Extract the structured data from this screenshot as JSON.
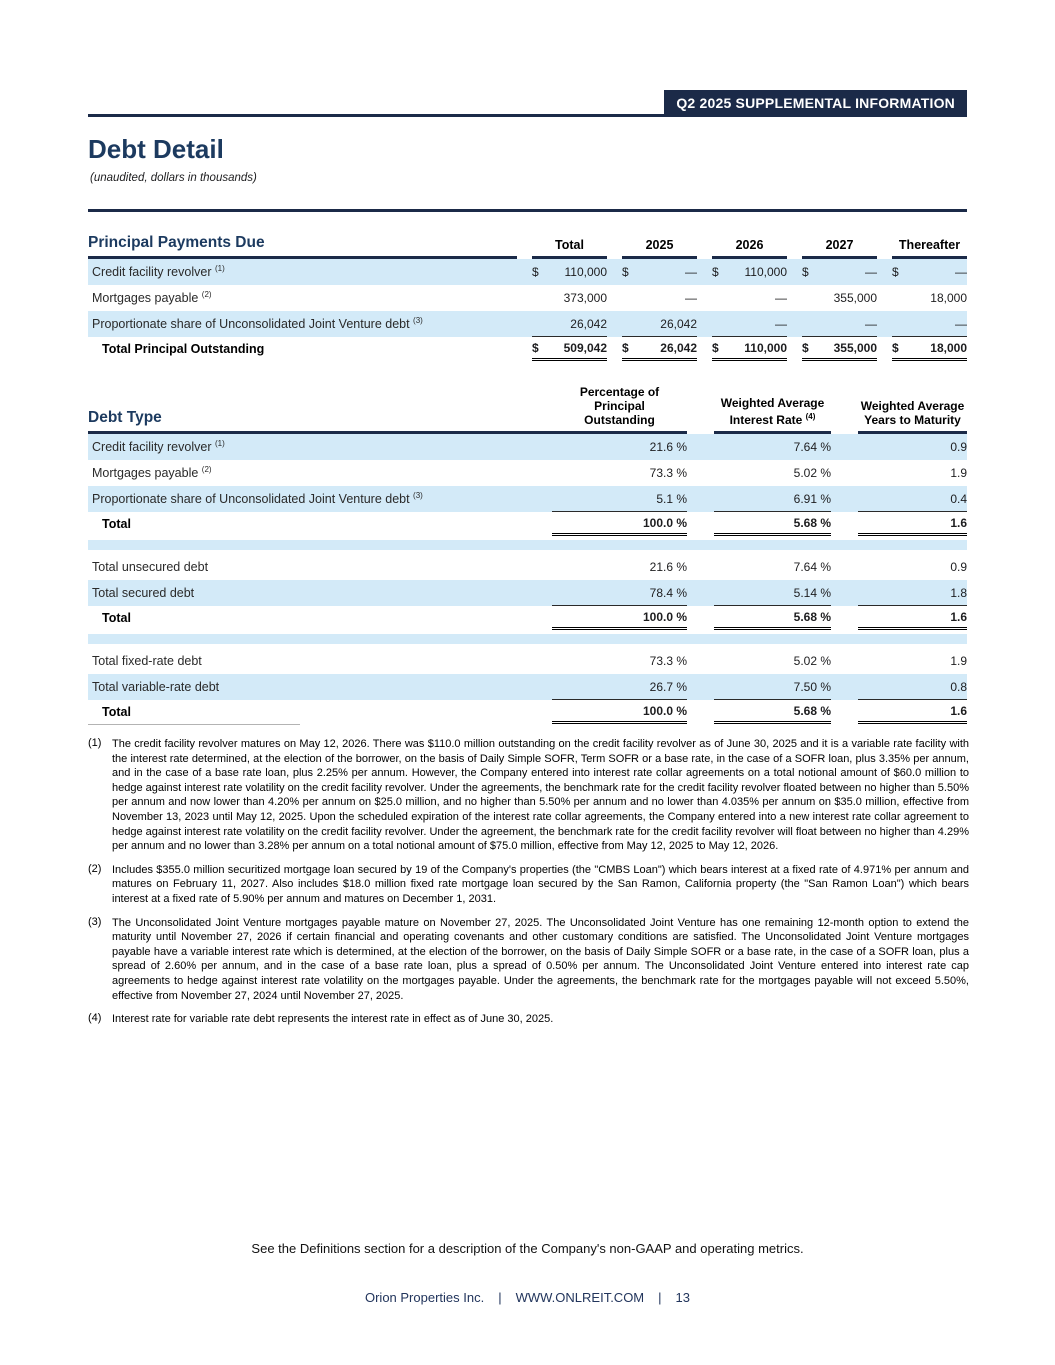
{
  "header": {
    "badge": "Q2 2025 SUPPLEMENTAL INFORMATION",
    "title": "Debt Detail",
    "subtitle": "(unaudited, dollars in thousands)"
  },
  "colors": {
    "navy": "#1b2a48",
    "title_navy": "#1c3a5f",
    "row_blue": "#d3eaf8"
  },
  "principal_table": {
    "header_label": "Principal Payments Due",
    "columns": [
      "Total",
      "2025",
      "2026",
      "2027",
      "Thereafter"
    ],
    "currency_symbol": "$",
    "rows": [
      {
        "label": "Credit facility revolver",
        "sup": "(1)",
        "dollar": true,
        "shaded": true,
        "values": [
          "110,000",
          "—",
          "110,000",
          "—",
          "—"
        ]
      },
      {
        "label": "Mortgages payable",
        "sup": "(2)",
        "dollar": false,
        "shaded": false,
        "values": [
          "373,000",
          "—",
          "—",
          "355,000",
          "18,000"
        ]
      },
      {
        "label": "Proportionate share of Unconsolidated Joint Venture debt",
        "sup": "(3)",
        "dollar": false,
        "shaded": true,
        "values": [
          "26,042",
          "26,042",
          "—",
          "—",
          "—"
        ]
      }
    ],
    "total": {
      "label": "Total Principal Outstanding",
      "dollar": true,
      "values": [
        "509,042",
        "26,042",
        "110,000",
        "355,000",
        "18,000"
      ]
    }
  },
  "debt_table": {
    "header_label": "Debt Type",
    "columns": [
      {
        "lines": [
          "Percentage of",
          "Principal",
          "Outstanding"
        ],
        "sup": ""
      },
      {
        "lines": [
          "Weighted Average",
          "Interest Rate"
        ],
        "sup": "(4)"
      },
      {
        "lines": [
          "Weighted Average",
          "Years to Maturity"
        ],
        "sup": ""
      }
    ],
    "percent_sign": "%",
    "sections": [
      {
        "rows": [
          {
            "label": "Credit facility revolver",
            "sup": "(1)",
            "shaded": true,
            "pct": "21.6",
            "rate": "7.64",
            "years": "0.9"
          },
          {
            "label": "Mortgages payable",
            "sup": "(2)",
            "shaded": false,
            "pct": "73.3",
            "rate": "5.02",
            "years": "1.9"
          },
          {
            "label": "Proportionate share of Unconsolidated Joint Venture debt",
            "sup": "(3)",
            "shaded": true,
            "pct": "5.1",
            "rate": "6.91",
            "years": "0.4"
          }
        ],
        "total": {
          "label": "Total",
          "pct": "100.0",
          "rate": "5.68",
          "years": "1.6"
        }
      },
      {
        "rows": [
          {
            "label": "Total unsecured debt",
            "sup": "",
            "shaded": false,
            "pct": "21.6",
            "rate": "7.64",
            "years": "0.9"
          },
          {
            "label": "Total secured debt",
            "sup": "",
            "shaded": true,
            "pct": "78.4",
            "rate": "5.14",
            "years": "1.8"
          }
        ],
        "total": {
          "label": "Total",
          "pct": "100.0",
          "rate": "5.68",
          "years": "1.6"
        }
      },
      {
        "rows": [
          {
            "label": "Total fixed-rate debt",
            "sup": "",
            "shaded": false,
            "pct": "73.3",
            "rate": "5.02",
            "years": "1.9"
          },
          {
            "label": "Total variable-rate debt",
            "sup": "",
            "shaded": true,
            "pct": "26.7",
            "rate": "7.50",
            "years": "0.8"
          }
        ],
        "total": {
          "label": "Total",
          "pct": "100.0",
          "rate": "5.68",
          "years": "1.6"
        }
      }
    ]
  },
  "footnotes": [
    {
      "num": "(1)",
      "text": "The credit facility revolver matures on May 12, 2026. There was $110.0 million outstanding on the credit facility revolver as of June 30, 2025 and it is a variable rate facility with the interest rate determined, at the election of the borrower, on the basis of Daily Simple SOFR, Term SOFR or a base rate, in the case of a SOFR loan, plus 3.35% per annum, and in the case of a base rate loan, plus 2.25% per annum. However, the Company entered into interest rate collar agreements on a total notional amount of $60.0 million to hedge against interest rate volatility on the credit facility revolver. Under the agreements, the benchmark rate for the credit facility revolver floated between no higher than 5.50% per annum and now lower than 4.20% per annum on $25.0 million, and no higher than 5.50% per annum and no lower than 4.035% per annum on $35.0 million, effective from November 13, 2023 until May 12, 2025. Upon the scheduled expiration of the interest rate collar agreements, the Company entered into a new interest rate collar agreement to hedge against interest rate volatility on the credit facility revolver. Under the agreement, the benchmark rate for the credit facility revolver will float between no higher than 4.29% per annum and no lower than 3.28% per annum on a total notional amount of $75.0 million, effective from May 12, 2025 to May 12, 2026."
    },
    {
      "num": "(2)",
      "text": "Includes $355.0 million securitized mortgage loan secured by 19 of the Company's properties (the \"CMBS Loan\") which bears interest at a fixed rate of 4.971% per annum and matures on February 11, 2027. Also includes $18.0 million fixed rate mortgage loan secured by the San Ramon, California property (the \"San Ramon Loan\") which bears interest at a fixed rate of 5.90% per annum and matures on December 1, 2031."
    },
    {
      "num": "(3)",
      "text": "The Unconsolidated Joint Venture mortgages payable mature on November 27, 2025. The Unconsolidated Joint Venture has one remaining 12-month option to extend the maturity until November 27, 2026 if certain financial and operating covenants and other customary conditions are satisfied. The Unconsolidated Joint Venture mortgages payable have a variable interest rate which is determined, at the election of the borrower, on the basis of Daily Simple SOFR or a base rate, in the case of a SOFR loan, plus a spread of 2.60% per annum, and in the case of a base rate loan, plus a spread of 0.50% per annum. The Unconsolidated Joint Venture entered into interest rate cap agreements to hedge against interest rate volatility on the mortgages payable. Under the agreements, the benchmark rate for the mortgages payable will not exceed 5.50%, effective from November 27, 2024 until November 27, 2025."
    },
    {
      "num": "(4)",
      "text": "Interest rate for variable rate debt represents the interest rate in effect as of June 30, 2025."
    }
  ],
  "footer": {
    "note": "See the Definitions section for a description of the Company's non-GAAP and operating metrics.",
    "company": "Orion Properties Inc.",
    "separator": "|",
    "website": "WWW.ONLREIT.COM",
    "page_number": "13"
  }
}
